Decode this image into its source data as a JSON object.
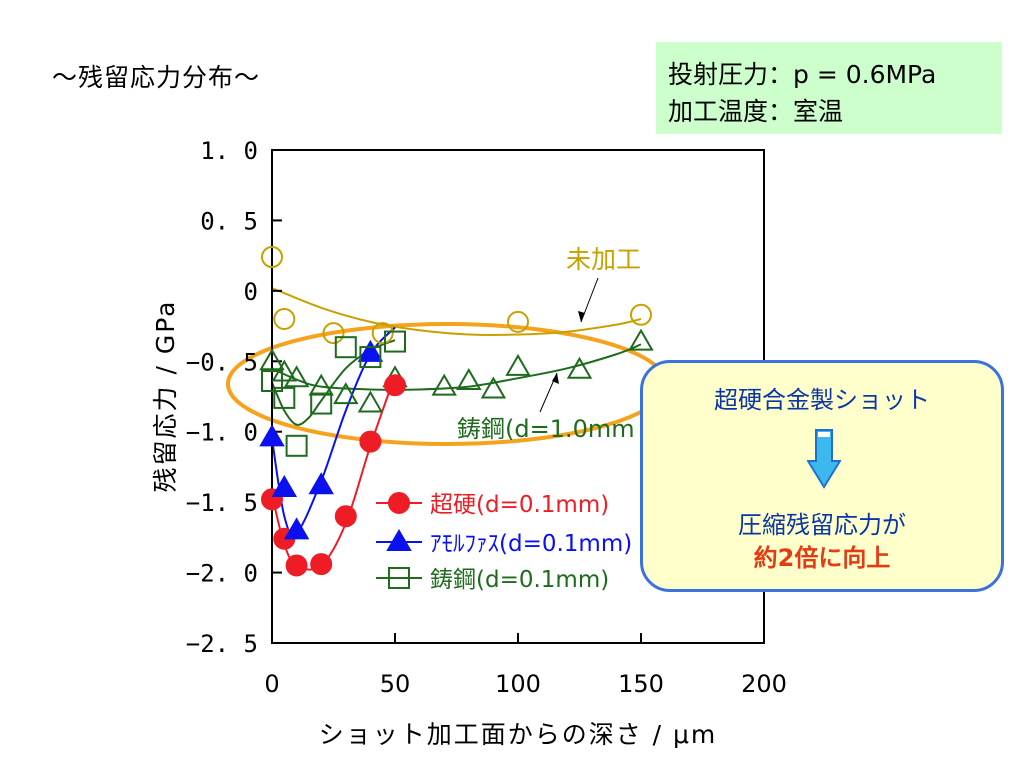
{
  "slide": {
    "title": "～残留応力分布～"
  },
  "conditions": {
    "line1": "投射圧力：p = 0.6MPa",
    "line2": "加工温度：室温"
  },
  "callout": {
    "top": "超硬合金製ショット",
    "middle": "圧縮残留応力が",
    "bottom": "約2倍に向上",
    "arrow_icon": "down-arrow-icon",
    "arrow_color": "#3db8ee"
  },
  "annotations": {
    "untreated": "未加工",
    "cast_steel_1mm": "鋳鋼(d=1.0mm"
  },
  "highlight": {
    "color": "#f5a21d"
  },
  "chart_data": {
    "type": "scatter",
    "title": "",
    "xlabel": "ショット加工面からの深さ / μm",
    "ylabel": "残留応力 / GPa",
    "xlim": [
      0,
      200
    ],
    "ylim": [
      -2.5,
      1.0
    ],
    "xticks": [
      {
        "v": 0,
        "label": "0"
      },
      {
        "v": 50,
        "label": "50"
      },
      {
        "v": 100,
        "label": "100"
      },
      {
        "v": 150,
        "label": "150"
      },
      {
        "v": 200,
        "label": "200"
      }
    ],
    "yticks": [
      {
        "v": 1.0,
        "label": "1. 0"
      },
      {
        "v": 0.5,
        "label": "0. 5"
      },
      {
        "v": 0,
        "label": "0"
      },
      {
        "v": -0.5,
        "label": "−0. 5"
      },
      {
        "v": -1.0,
        "label": "−1. 0"
      },
      {
        "v": -1.5,
        "label": "−1. 5"
      },
      {
        "v": -2.0,
        "label": "−2. 0"
      },
      {
        "v": -2.5,
        "label": "−2. 5"
      }
    ],
    "legend_position": "bottom-right inside",
    "series": [
      {
        "name": "未加工",
        "marker": "open-circle",
        "color": "#c8a000",
        "x": [
          0,
          5,
          25,
          45,
          100,
          150
        ],
        "y": [
          0.24,
          -0.2,
          -0.3,
          -0.3,
          -0.22,
          -0.17
        ],
        "curve_x": [
          0,
          20,
          40,
          60,
          80,
          100,
          120,
          140,
          150
        ],
        "curve_y": [
          0.02,
          -0.12,
          -0.22,
          -0.28,
          -0.31,
          -0.31,
          -0.29,
          -0.24,
          -0.2
        ]
      },
      {
        "name": "鋳鋼(d=1.0mm",
        "marker": "open-triangle",
        "color": "#1e6b1e",
        "x": [
          0,
          5,
          10,
          20,
          30,
          40,
          50,
          70,
          80,
          90,
          100,
          125,
          150
        ],
        "y": [
          -0.5,
          -0.58,
          -0.62,
          -0.68,
          -0.74,
          -0.8,
          -0.62,
          -0.68,
          -0.64,
          -0.7,
          -0.54,
          -0.56,
          -0.36
        ],
        "curve_x": [
          0,
          10,
          20,
          40,
          60,
          80,
          100,
          120,
          140,
          150
        ],
        "curve_y": [
          -0.55,
          -0.63,
          -0.68,
          -0.7,
          -0.7,
          -0.68,
          -0.62,
          -0.55,
          -0.45,
          -0.38
        ]
      },
      {
        "name": "超硬(d=0.1mm)",
        "marker": "filled-circle",
        "color": "#ee1c25",
        "x": [
          0,
          5,
          10,
          20,
          30,
          40,
          50
        ],
        "y": [
          -1.48,
          -1.76,
          -1.95,
          -1.94,
          -1.6,
          -1.07,
          -0.67
        ],
        "curve_x": [
          0,
          5,
          10,
          20,
          30,
          40,
          50
        ],
        "curve_y": [
          -1.45,
          -1.8,
          -1.95,
          -1.95,
          -1.65,
          -1.1,
          -0.6
        ]
      },
      {
        "name": "ｱﾓﾙﾌｧｽ(d=0.1mm)",
        "marker": "filled-triangle",
        "color": "#0a10ee",
        "x": [
          0,
          5,
          10,
          20,
          40
        ],
        "y": [
          -1.04,
          -1.4,
          -1.7,
          -1.38,
          -0.44
        ],
        "curve_x": [
          0,
          5,
          10,
          20,
          30,
          40,
          50
        ],
        "curve_y": [
          -1.05,
          -1.6,
          -1.72,
          -1.35,
          -0.85,
          -0.45,
          -0.26
        ]
      },
      {
        "name": "鋳鋼(d=0.1mm)",
        "marker": "open-square",
        "color": "#1e6b1e",
        "x": [
          0,
          5,
          10,
          20,
          30,
          40,
          50
        ],
        "y": [
          -0.64,
          -0.76,
          -1.1,
          -0.8,
          -0.4,
          -0.47,
          -0.36
        ],
        "curve_x": [
          0,
          5,
          10,
          15,
          20,
          30,
          40,
          50
        ],
        "curve_y": [
          -0.65,
          -0.85,
          -0.95,
          -0.9,
          -0.78,
          -0.55,
          -0.42,
          -0.35
        ]
      }
    ]
  }
}
